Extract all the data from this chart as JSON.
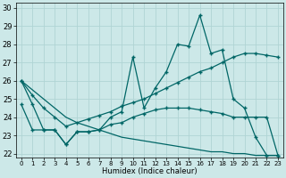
{
  "xlabel": "Humidex (Indice chaleur)",
  "bg_color": "#cce8e8",
  "grid_color": "#b0d4d4",
  "line_color": "#006666",
  "xlim": [
    -0.5,
    23.5
  ],
  "ylim": [
    21.8,
    30.3
  ],
  "yticks": [
    22,
    23,
    24,
    25,
    26,
    27,
    28,
    29,
    30
  ],
  "xticks": [
    0,
    1,
    2,
    3,
    4,
    5,
    6,
    7,
    8,
    9,
    10,
    11,
    12,
    13,
    14,
    15,
    16,
    17,
    18,
    19,
    20,
    21,
    22,
    23
  ],
  "series1_x": [
    0,
    1,
    2,
    3,
    4,
    5,
    6,
    7,
    8,
    9,
    10,
    11,
    12,
    13,
    14,
    15,
    16,
    17,
    18,
    19,
    20,
    21,
    22,
    23
  ],
  "series1_y": [
    26.0,
    24.7,
    23.3,
    23.3,
    22.5,
    23.2,
    23.2,
    23.3,
    24.0,
    24.3,
    27.3,
    24.5,
    25.6,
    26.5,
    28.0,
    27.9,
    29.6,
    27.5,
    27.7,
    25.0,
    24.5,
    22.9,
    21.9,
    21.9
  ],
  "series2_x": [
    0,
    1,
    2,
    3,
    4,
    5,
    6,
    7,
    8,
    9,
    10,
    11,
    12,
    13,
    14,
    15,
    16,
    17,
    18,
    19,
    20,
    21,
    22,
    23
  ],
  "series2_y": [
    26.0,
    25.2,
    24.5,
    24.0,
    23.5,
    23.7,
    23.9,
    24.1,
    24.3,
    24.6,
    24.8,
    25.0,
    25.3,
    25.6,
    25.9,
    26.2,
    26.5,
    26.7,
    27.0,
    27.3,
    27.5,
    27.5,
    27.4,
    27.3
  ],
  "series3_x": [
    0,
    1,
    2,
    3,
    4,
    5,
    6,
    7,
    8,
    9,
    10,
    11,
    12,
    13,
    14,
    15,
    16,
    17,
    18,
    19,
    20,
    21,
    22,
    23
  ],
  "series3_y": [
    24.7,
    23.3,
    23.3,
    23.3,
    22.5,
    23.2,
    23.2,
    23.3,
    23.6,
    23.7,
    24.0,
    24.2,
    24.4,
    24.5,
    24.5,
    24.5,
    24.4,
    24.3,
    24.2,
    24.0,
    24.0,
    24.0,
    24.0,
    21.9
  ],
  "series4_x": [
    0,
    1,
    2,
    3,
    4,
    5,
    6,
    7,
    8,
    9,
    10,
    11,
    12,
    13,
    14,
    15,
    16,
    17,
    18,
    19,
    20,
    21,
    22,
    23
  ],
  "series4_y": [
    26.0,
    25.5,
    25.0,
    24.5,
    24.0,
    23.7,
    23.5,
    23.3,
    23.1,
    22.9,
    22.8,
    22.7,
    22.6,
    22.5,
    22.4,
    22.3,
    22.2,
    22.1,
    22.1,
    22.0,
    22.0,
    21.9,
    21.9,
    21.9
  ]
}
